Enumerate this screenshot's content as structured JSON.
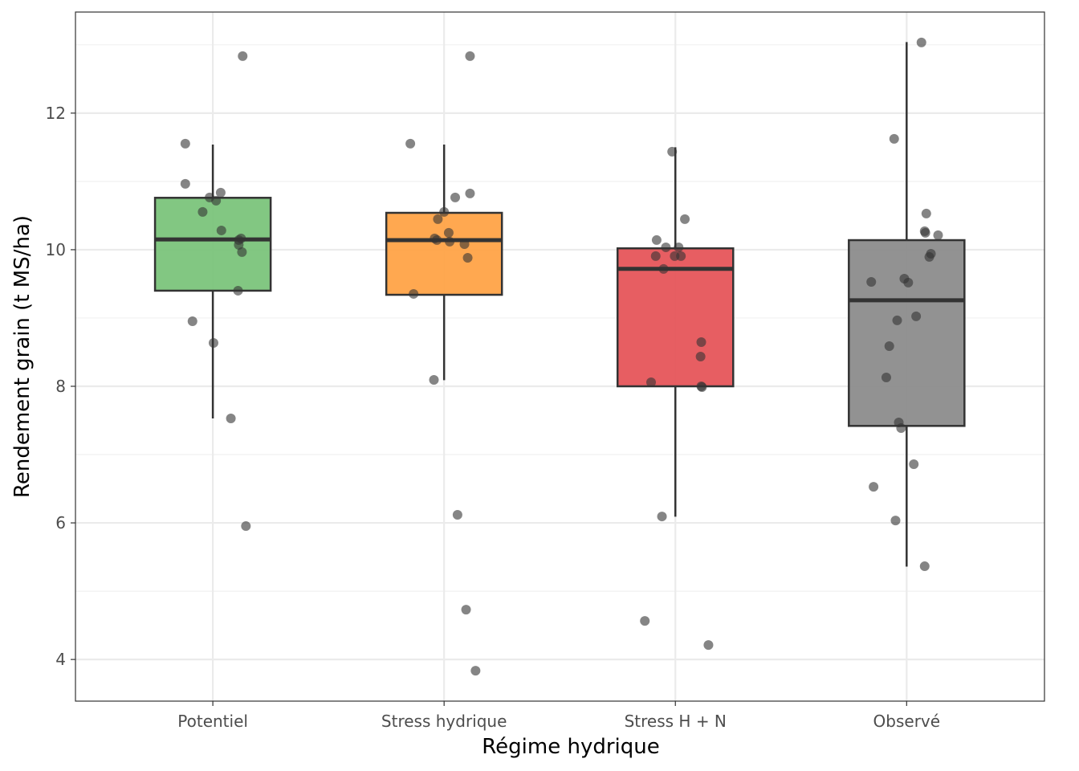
{
  "chart_data": {
    "type": "box",
    "title": "",
    "xlabel": "Régime hydrique",
    "ylabel": "Rendement grain (t MS/ha)",
    "categories": [
      "Potentiel",
      "Stress hydrique",
      "Stress H + N",
      "Observé"
    ],
    "ylim": [
      3.39,
      13.48
    ],
    "xlim": [
      0.406,
      4.596
    ],
    "yticks": [
      4,
      6,
      8,
      10,
      12
    ],
    "yminor": [
      5,
      7,
      9,
      11,
      13
    ],
    "grid": true,
    "legend": "none",
    "colors": [
      "#7BC47B",
      "#FFA347",
      "#E6555A",
      "#8C8C8C"
    ],
    "point_color": "#333333",
    "boxes": [
      {
        "q1": 9.4,
        "median": 10.15,
        "q3": 10.76,
        "whisker_low": 7.53,
        "whisker_high": 11.54
      },
      {
        "q1": 9.34,
        "median": 10.14,
        "q3": 10.54,
        "whisker_low": 8.09,
        "whisker_high": 11.54
      },
      {
        "q1": 8.0,
        "median": 9.72,
        "q3": 10.02,
        "whisker_low": 6.09,
        "whisker_high": 11.5
      },
      {
        "q1": 7.42,
        "median": 9.26,
        "q3": 10.14,
        "whisker_low": 5.36,
        "whisker_high": 13.04
      }
    ],
    "points": [
      [
        [
          1.129,
          12.835
        ],
        [
          0.881,
          11.553
        ],
        [
          0.881,
          10.965
        ],
        [
          0.986,
          10.765
        ],
        [
          1.014,
          10.718
        ],
        [
          1.034,
          10.835
        ],
        [
          0.956,
          10.553
        ],
        [
          1.037,
          10.282
        ],
        [
          1.122,
          10.165
        ],
        [
          1.112,
          10.141
        ],
        [
          1.112,
          10.071
        ],
        [
          1.126,
          9.965
        ],
        [
          1.109,
          9.4
        ],
        [
          0.912,
          8.953
        ],
        [
          1.003,
          8.635
        ],
        [
          1.078,
          7.529
        ],
        [
          1.143,
          5.953
        ]
      ],
      [
        [
          2.112,
          12.835
        ],
        [
          1.854,
          11.553
        ],
        [
          2.048,
          10.765
        ],
        [
          2.112,
          10.824
        ],
        [
          1.973,
          10.447
        ],
        [
          2.0,
          10.553
        ],
        [
          2.02,
          10.247
        ],
        [
          1.959,
          10.165
        ],
        [
          1.969,
          10.141
        ],
        [
          2.024,
          10.118
        ],
        [
          2.088,
          10.082
        ],
        [
          2.102,
          9.882
        ],
        [
          1.868,
          9.353
        ],
        [
          1.956,
          8.094
        ],
        [
          2.058,
          6.118
        ],
        [
          2.095,
          4.729
        ],
        [
          2.136,
          3.835
        ]
      ],
      [
        [
          2.986,
          11.435
        ],
        [
          3.041,
          10.447
        ],
        [
          2.919,
          10.141
        ],
        [
          2.959,
          10.035
        ],
        [
          3.014,
          10.035
        ],
        [
          2.915,
          9.906
        ],
        [
          2.997,
          9.906
        ],
        [
          3.024,
          9.906
        ],
        [
          2.949,
          9.718
        ],
        [
          3.112,
          8.647
        ],
        [
          3.109,
          8.435
        ],
        [
          2.895,
          8.059
        ],
        [
          3.112,
          8.0
        ],
        [
          3.115,
          7.988
        ],
        [
          2.942,
          6.094
        ],
        [
          2.868,
          4.565
        ],
        [
          3.143,
          4.212
        ]
      ],
      [
        [
          4.064,
          13.035
        ],
        [
          3.946,
          11.624
        ],
        [
          4.085,
          10.529
        ],
        [
          4.078,
          10.271
        ],
        [
          4.081,
          10.247
        ],
        [
          4.136,
          10.212
        ],
        [
          4.105,
          9.941
        ],
        [
          4.098,
          9.894
        ],
        [
          3.847,
          9.529
        ],
        [
          3.99,
          9.576
        ],
        [
          4.007,
          9.518
        ],
        [
          4.041,
          9.024
        ],
        [
          3.959,
          8.965
        ],
        [
          3.925,
          8.588
        ],
        [
          3.912,
          8.129
        ],
        [
          3.966,
          7.471
        ],
        [
          3.976,
          7.388
        ],
        [
          4.031,
          6.859
        ],
        [
          3.857,
          6.529
        ],
        [
          3.952,
          6.035
        ],
        [
          4.078,
          5.365
        ]
      ]
    ]
  }
}
